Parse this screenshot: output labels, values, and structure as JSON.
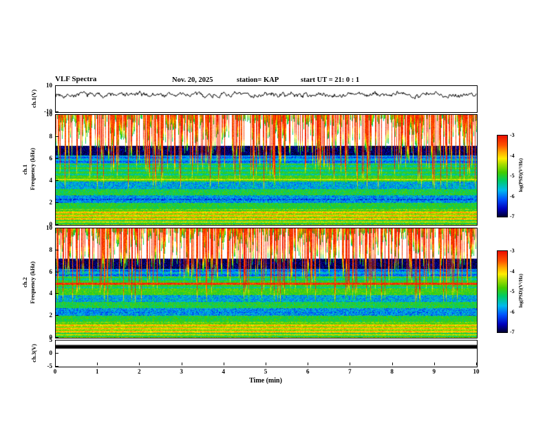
{
  "header": {
    "title": "VLF Spectra",
    "date": "Nov. 20, 2025",
    "station": "station= KAP",
    "start_ut": "start UT =  21: 0 : 1"
  },
  "chart_data": {
    "type": [
      "line",
      "heatmap",
      "heatmap",
      "bar"
    ],
    "title": "VLF Spectra",
    "x_axis": {
      "label": "Time (min)",
      "range": [
        0,
        10
      ],
      "ticks": [
        0,
        1,
        2,
        3,
        4,
        5,
        6,
        7,
        8,
        9,
        10
      ]
    },
    "panels": [
      {
        "id": "ch1-wave",
        "kind": "line",
        "ylabel": "ch.1(V)",
        "yrange": [
          -10,
          10
        ],
        "yticks": [
          10,
          -10
        ],
        "signal": {
          "mean": 3.3,
          "wander": 2.6,
          "jitter": 1.3,
          "seed": 7
        }
      },
      {
        "id": "ch1-spec",
        "kind": "heatmap",
        "ylabel_rot1": "ch.1",
        "ylabel_rot2": "Frequency (kHz)",
        "yrange": [
          0,
          10
        ],
        "yticks": [
          10,
          8,
          6,
          4,
          2,
          0
        ],
        "seed": 11,
        "lines": [
          {
            "f": 4.15,
            "v": -4.3,
            "w": 0.07,
            "mode": "max"
          },
          {
            "f": 2.32,
            "v": -6.2,
            "w": 0.06,
            "mode": "set"
          }
        ]
      },
      {
        "id": "ch2-spec",
        "kind": "heatmap",
        "ylabel_rot1": "ch.2",
        "ylabel_rot2": "Frequency (kHz)",
        "yrange": [
          0,
          10
        ],
        "yticks": [
          10,
          8,
          6,
          4,
          2,
          0
        ],
        "seed": 23,
        "lines": [
          {
            "f": 4.95,
            "v": -3.25,
            "w": 0.09,
            "mode": "max"
          },
          {
            "f": 2.32,
            "v": -6.0,
            "w": 0.05,
            "mode": "set"
          }
        ]
      },
      {
        "id": "ch3-bar",
        "kind": "bar",
        "ylabel": "ch.3(V)",
        "yrange": [
          -5,
          5
        ],
        "yticks": [
          5,
          0,
          -5
        ],
        "bar_range": [
          1.9,
          3.3
        ],
        "bar_color": "#000000"
      }
    ],
    "spectrogram_model": {
      "bands": [
        {
          "f0": 0.0,
          "f1": 0.45,
          "v": -4.7,
          "sp": 0.6
        },
        {
          "f0": 0.45,
          "f1": 1.35,
          "v": -4.25,
          "sp": 0.6
        },
        {
          "f0": 1.35,
          "f1": 2.05,
          "v": -5.0,
          "sp": 0.7
        },
        {
          "f0": 2.05,
          "f1": 2.75,
          "v": -5.8,
          "sp": 1.1
        },
        {
          "f0": 2.75,
          "f1": 3.3,
          "v": -5.05,
          "sp": 0.8
        },
        {
          "f0": 3.3,
          "f1": 3.95,
          "v": -5.7,
          "sp": 1.1
        },
        {
          "f0": 3.95,
          "f1": 4.55,
          "v": -4.85,
          "sp": 0.7
        },
        {
          "f0": 4.55,
          "f1": 5.6,
          "v": -5.15,
          "sp": 0.7
        },
        {
          "f0": 5.6,
          "f1": 6.35,
          "v": -5.85,
          "sp": 0.8
        },
        {
          "f0": 6.35,
          "f1": 7.25,
          "v": -6.9,
          "sp": 0.9
        },
        {
          "f0": 7.25,
          "f1": 10.01,
          "v": -8.6,
          "sp": 0.5
        }
      ],
      "stripes": [
        {
          "f0": 0.0,
          "f1": 1.45,
          "amp": 0.5,
          "freq": 22,
          "phase": 1.2
        },
        {
          "f0": 4.55,
          "f1": 6.35,
          "amp": 0.3,
          "freq": 16,
          "phase": 0.4
        }
      ],
      "streaks": {
        "probability": 0.85,
        "power": 1.6,
        "fmin_base": 9.7,
        "fmin_span": 6.8,
        "peak": -3.05,
        "peak_jitter": 0.45,
        "fade_kHz": 1.3
      },
      "noise": 0.95
    },
    "colorbars": [
      {
        "label": "log(PSD)(V²/Hz)",
        "ticks": [
          -3,
          -4,
          -5,
          -6,
          -7
        ],
        "range": [
          -7,
          -3
        ]
      },
      {
        "label": "log(PSD)(V²/Hz)",
        "ticks": [
          -3,
          -4,
          -5,
          -6,
          -7
        ],
        "range": [
          -7,
          -3
        ]
      }
    ],
    "colormap": {
      "range": [
        -7,
        -3
      ],
      "under_white_below": -7.55,
      "stops": [
        {
          "t": 0.0,
          "c": "#00002a"
        },
        {
          "t": 0.1,
          "c": "#0000bb"
        },
        {
          "t": 0.22,
          "c": "#0055ff"
        },
        {
          "t": 0.33,
          "c": "#00bbee"
        },
        {
          "t": 0.45,
          "c": "#00cc66"
        },
        {
          "t": 0.55,
          "c": "#44cc00"
        },
        {
          "t": 0.65,
          "c": "#aadd00"
        },
        {
          "t": 0.72,
          "c": "#ffee00"
        },
        {
          "t": 0.8,
          "c": "#ffaa00"
        },
        {
          "t": 0.88,
          "c": "#ff5500"
        },
        {
          "t": 1.0,
          "c": "#ee1100"
        }
      ]
    }
  }
}
